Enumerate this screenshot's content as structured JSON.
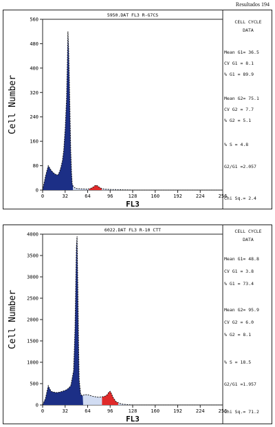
{
  "page": {
    "header": "Resultados 194"
  },
  "panels": [
    {
      "file_label": "5950.DAT FL3 R-G7CS",
      "stats": {
        "title1": "CELL CYCLE",
        "title2": "DATA",
        "mean_g1": "Mean G1= 36.5",
        "cv_g1": "CV G1 = 8.1",
        "pct_g1": "% G1 = 89.9",
        "mean_g2": "Mean G2= 75.1",
        "cv_g2": "CV G2 = 7.7",
        "pct_g2": "% G2 = 5.1",
        "pct_s": "% S = 4.8",
        "g2g1": "G2/G1 =2.057",
        "chi": "Chi Sq.= 2.4"
      }
    },
    {
      "file_label": "6022.DAT FL3 R-10 CTT",
      "stats": {
        "title1": "CELL CYCLE",
        "title2": "DATA",
        "mean_g1": "Mean G1= 48.8",
        "cv_g1": "CV G1 = 3.8",
        "pct_g1": "% G1 = 73.4",
        "mean_g2": "Mean G2= 95.9",
        "cv_g2": "CV G2 = 6.0",
        "pct_g2": "% G2 = 8.1",
        "pct_s": "% S = 18.5",
        "g2g1": "G2/G1 =1.957",
        "chi": "Chi Sq.= 71.2"
      }
    }
  ],
  "chart_data": [
    {
      "type": "area",
      "xlabel": "FL3",
      "ylabel": "Cell Number",
      "xlim": [
        0,
        256
      ],
      "ylim": [
        0,
        560
      ],
      "xticks": [
        "0",
        "32",
        "64",
        "96",
        "128",
        "160",
        "192",
        "224",
        "256"
      ],
      "yticks": [
        "0",
        "80",
        "160",
        "240",
        "320",
        "400",
        "480",
        "560"
      ],
      "grid": false,
      "colors": {
        "g1": "#1c2f86",
        "s": "#c9d6f0",
        "g2": "#e02a2a",
        "fit": "#111111"
      },
      "series": [
        {
          "x": [
            0,
            4,
            8,
            12,
            16,
            20,
            22,
            24,
            26,
            28,
            30,
            32,
            34,
            35,
            36,
            37,
            38,
            39,
            40,
            41,
            42,
            44,
            48,
            56,
            64,
            68,
            72,
            74,
            76,
            78,
            80,
            84,
            88,
            96,
            112,
            128,
            160,
            192,
            224,
            256
          ],
          "values": [
            0,
            45,
            80,
            65,
            55,
            50,
            50,
            60,
            75,
            95,
            130,
            200,
            300,
            400,
            520,
            460,
            360,
            240,
            130,
            60,
            20,
            10,
            5,
            4,
            3,
            5,
            10,
            14,
            16,
            14,
            10,
            5,
            3,
            2,
            1,
            0,
            0,
            0,
            0,
            0
          ]
        }
      ]
    },
    {
      "type": "area",
      "xlabel": "FL3",
      "ylabel": "Cell Number",
      "xlim": [
        0,
        256
      ],
      "ylim": [
        0,
        4000
      ],
      "xticks": [
        "0",
        "32",
        "64",
        "96",
        "128",
        "160",
        "192",
        "224",
        "256"
      ],
      "yticks": [
        "0",
        "500",
        "1000",
        "1500",
        "2000",
        "2500",
        "3000",
        "3500",
        "4000"
      ],
      "grid": false,
      "colors": {
        "g1": "#1c2f86",
        "s": "#c9d6f0",
        "g2": "#e02a2a",
        "fit": "#111111"
      },
      "series": [
        {
          "x": [
            0,
            4,
            8,
            10,
            12,
            16,
            20,
            24,
            28,
            32,
            36,
            40,
            44,
            46,
            48,
            49,
            50,
            51,
            52,
            54,
            56,
            58,
            60,
            64,
            72,
            80,
            88,
            92,
            94,
            96,
            98,
            100,
            104,
            112,
            128,
            160,
            192,
            224,
            256
          ],
          "values": [
            0,
            150,
            450,
            380,
            320,
            300,
            290,
            300,
            320,
            340,
            380,
            450,
            800,
            1800,
            3700,
            3950,
            2800,
            1500,
            600,
            250,
            220,
            230,
            240,
            240,
            200,
            180,
            200,
            240,
            300,
            320,
            260,
            180,
            80,
            20,
            0,
            0,
            0,
            0,
            0
          ]
        }
      ]
    }
  ]
}
